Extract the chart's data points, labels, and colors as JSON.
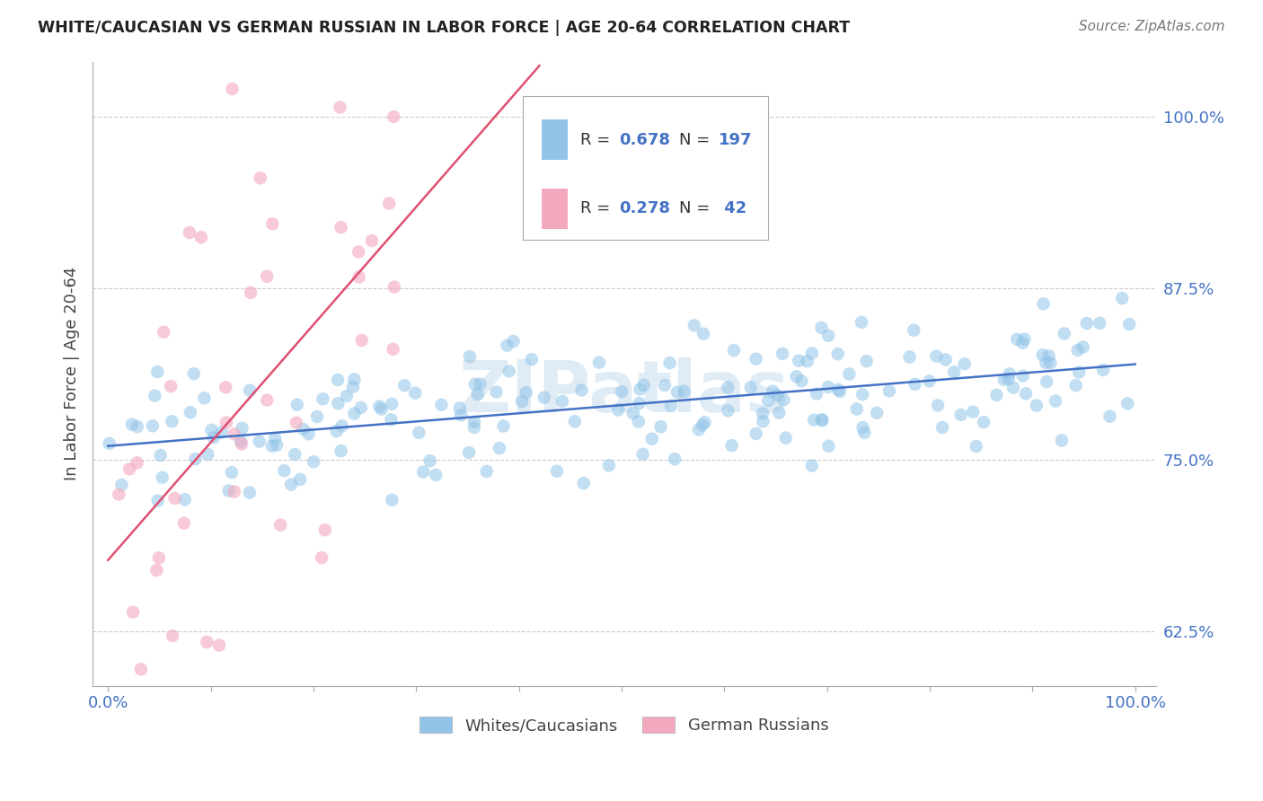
{
  "title": "WHITE/CAUCASIAN VS GERMAN RUSSIAN IN LABOR FORCE | AGE 20-64 CORRELATION CHART",
  "source": "Source: ZipAtlas.com",
  "ylabel": "In Labor Force | Age 20-64",
  "watermark": "ZIPatlas",
  "blue_label": "Whites/Caucasians",
  "pink_label": "German Russians",
  "blue_color": "#91c4e8",
  "pink_color": "#f4a8be",
  "blue_line_color": "#4472c4",
  "pink_line_color": "#e05070",
  "blue_R": 0.678,
  "blue_N": 197,
  "pink_R": 0.278,
  "pink_N": 42,
  "xmin": 0.0,
  "xmax": 1.0,
  "ymin": 0.585,
  "ymax": 1.04,
  "ytick_vals": [
    0.625,
    0.75,
    0.875,
    1.0
  ],
  "ytick_labels": [
    "62.5%",
    "75.0%",
    "87.5%",
    "100.0%"
  ],
  "background_color": "#ffffff",
  "grid_color": "#cccccc",
  "title_color": "#222222",
  "axis_label_color": "#444444",
  "tick_color": "#4472c4",
  "watermark_color": "#b8d4ea",
  "legend_color": "#333333",
  "legend_val_color": "#4472c4",
  "blue_scatter_seed": 101,
  "pink_scatter_seed": 202
}
